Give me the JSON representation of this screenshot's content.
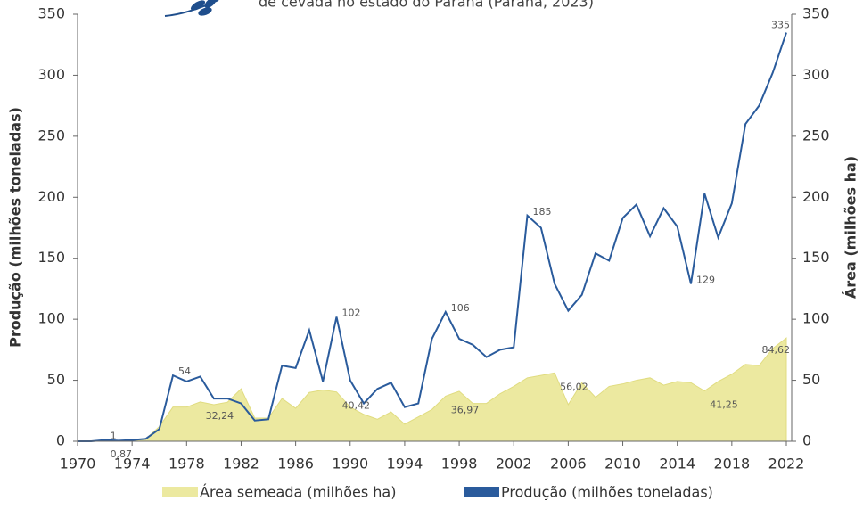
{
  "chart_data": {
    "type": "line_area",
    "subtitle": "de cevada no estado do Paraná (Paraná, 2023)",
    "y_label": "Produção (milhões toneladas)",
    "y2_label": "Área (milhões ha)",
    "x": [
      1970,
      1971,
      1972,
      1973,
      1974,
      1975,
      1976,
      1977,
      1978,
      1979,
      1980,
      1981,
      1982,
      1983,
      1984,
      1985,
      1986,
      1987,
      1988,
      1989,
      1990,
      1991,
      1992,
      1993,
      1994,
      1995,
      1996,
      1997,
      1998,
      1999,
      2000,
      2001,
      2002,
      2003,
      2004,
      2005,
      2006,
      2007,
      2008,
      2009,
      2010,
      2011,
      2012,
      2013,
      2014,
      2015,
      2016,
      2017,
      2018,
      2019,
      2020,
      2021,
      2022
    ],
    "xlim": [
      1970,
      2022
    ],
    "xticks": [
      1970,
      1974,
      1978,
      1982,
      1986,
      1990,
      1994,
      1998,
      2002,
      2006,
      2010,
      2014,
      2018,
      2022
    ],
    "ylim": [
      0,
      350
    ],
    "yticks": [
      0,
      50,
      100,
      150,
      200,
      250,
      300,
      350
    ],
    "y2lim": [
      0,
      350
    ],
    "y2ticks": [
      0,
      50,
      100,
      150,
      200,
      250,
      300,
      350
    ],
    "series": [
      {
        "name": "Área semeada (milhões ha)",
        "color": "#ece9a0",
        "kind": "area",
        "axis": "y2",
        "values": [
          0,
          0,
          0.87,
          0.5,
          1,
          2,
          12,
          28,
          28,
          32.24,
          30,
          32,
          43,
          19,
          19,
          35,
          27,
          40,
          42,
          40.42,
          28,
          22,
          18,
          24,
          14,
          20,
          26,
          36.97,
          41,
          31,
          31,
          39,
          45,
          52,
          54,
          56.02,
          30,
          48,
          36,
          45,
          47,
          50,
          52,
          46,
          49,
          48,
          41.25,
          49,
          55,
          63,
          62,
          76,
          84.62
        ],
        "value_labels": [
          null,
          null,
          "0,87",
          null,
          null,
          null,
          null,
          null,
          null,
          "32,24",
          null,
          null,
          null,
          null,
          null,
          null,
          null,
          null,
          null,
          "40,42",
          null,
          null,
          null,
          null,
          null,
          null,
          null,
          "36,97",
          null,
          null,
          null,
          null,
          null,
          null,
          null,
          "56,02",
          null,
          null,
          null,
          null,
          null,
          null,
          null,
          null,
          null,
          null,
          "41,25",
          null,
          null,
          null,
          null,
          null,
          "84,62"
        ]
      },
      {
        "name": "Produção (milhões toneladas)",
        "color": "#2a5b9c",
        "kind": "line",
        "values": [
          0,
          0,
          1,
          0.5,
          1,
          2,
          10,
          54,
          49,
          53,
          35,
          35,
          31,
          17,
          18,
          62,
          60,
          91,
          49,
          102,
          50,
          31,
          43,
          48,
          28,
          31,
          84,
          106,
          84,
          79,
          69,
          75,
          77,
          185,
          175,
          129,
          107,
          120,
          154,
          148,
          183,
          194,
          168,
          191,
          176,
          129,
          203,
          167,
          195,
          260,
          275,
          302,
          335
        ],
        "value_labels": [
          null,
          null,
          "1",
          null,
          null,
          null,
          null,
          "54",
          null,
          null,
          null,
          null,
          null,
          null,
          null,
          null,
          null,
          null,
          null,
          "102",
          null,
          null,
          null,
          null,
          null,
          null,
          null,
          "106",
          null,
          null,
          null,
          null,
          null,
          "185",
          null,
          null,
          null,
          null,
          null,
          null,
          null,
          null,
          null,
          null,
          null,
          "129",
          null,
          null,
          null,
          null,
          null,
          null,
          "335"
        ]
      }
    ]
  }
}
